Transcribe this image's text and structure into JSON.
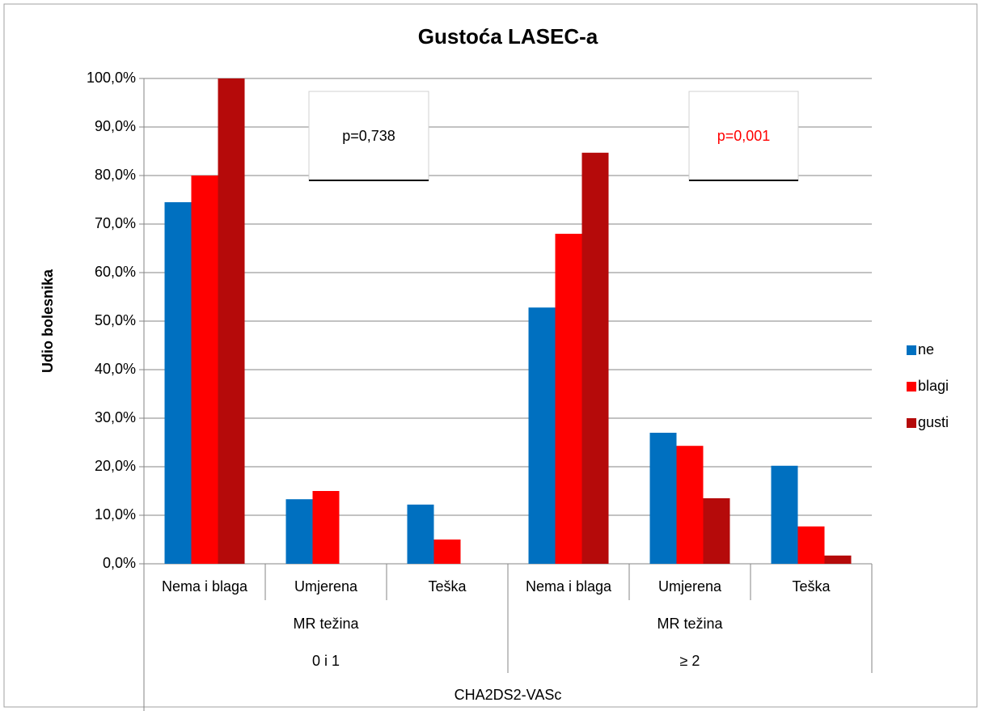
{
  "chart_data": {
    "type": "bar",
    "title": "Gustoća LASEC-a",
    "ylabel": "Udio bolesnika",
    "categories": [
      "Nema i blaga",
      "Umjerena",
      "Teška",
      "Nema i blaga",
      "Umjerena",
      "Teška"
    ],
    "subgroups": [
      "MR težina",
      "MR težina"
    ],
    "groups": [
      "0 i 1",
      "≥ 2"
    ],
    "supergroup": "CHA2DS2-VASc",
    "series": [
      {
        "name": "ne",
        "color": "#0070c0",
        "values": [
          74.5,
          13.3,
          12.2,
          52.8,
          27.0,
          20.2
        ]
      },
      {
        "name": "blagi",
        "color": "#ff0000",
        "values": [
          80.0,
          15.0,
          5.0,
          68.0,
          24.3,
          7.7
        ]
      },
      {
        "name": "gusti",
        "color": "#b50a0a",
        "values": [
          100.0,
          0,
          0,
          84.7,
          13.5,
          1.7
        ]
      }
    ],
    "ylim": [
      0,
      100
    ],
    "yticks": [
      {
        "value": 0,
        "label": "0,0%"
      },
      {
        "value": 10,
        "label": "10,0%"
      },
      {
        "value": 20,
        "label": "20,0%"
      },
      {
        "value": 30,
        "label": "30,0%"
      },
      {
        "value": 40,
        "label": "40,0%"
      },
      {
        "value": 50,
        "label": "50,0%"
      },
      {
        "value": 60,
        "label": "60,0%"
      },
      {
        "value": 70,
        "label": "70,0%"
      },
      {
        "value": 80,
        "label": "80,0%"
      },
      {
        "value": 90,
        "label": "90,0%"
      },
      {
        "value": 100,
        "label": "100,0%"
      }
    ],
    "grid": true,
    "legend": "right",
    "annotations": [
      {
        "text": "p=0,738",
        "color": "#000000"
      },
      {
        "text": "p=0,001",
        "color": "#ff0000"
      }
    ]
  }
}
